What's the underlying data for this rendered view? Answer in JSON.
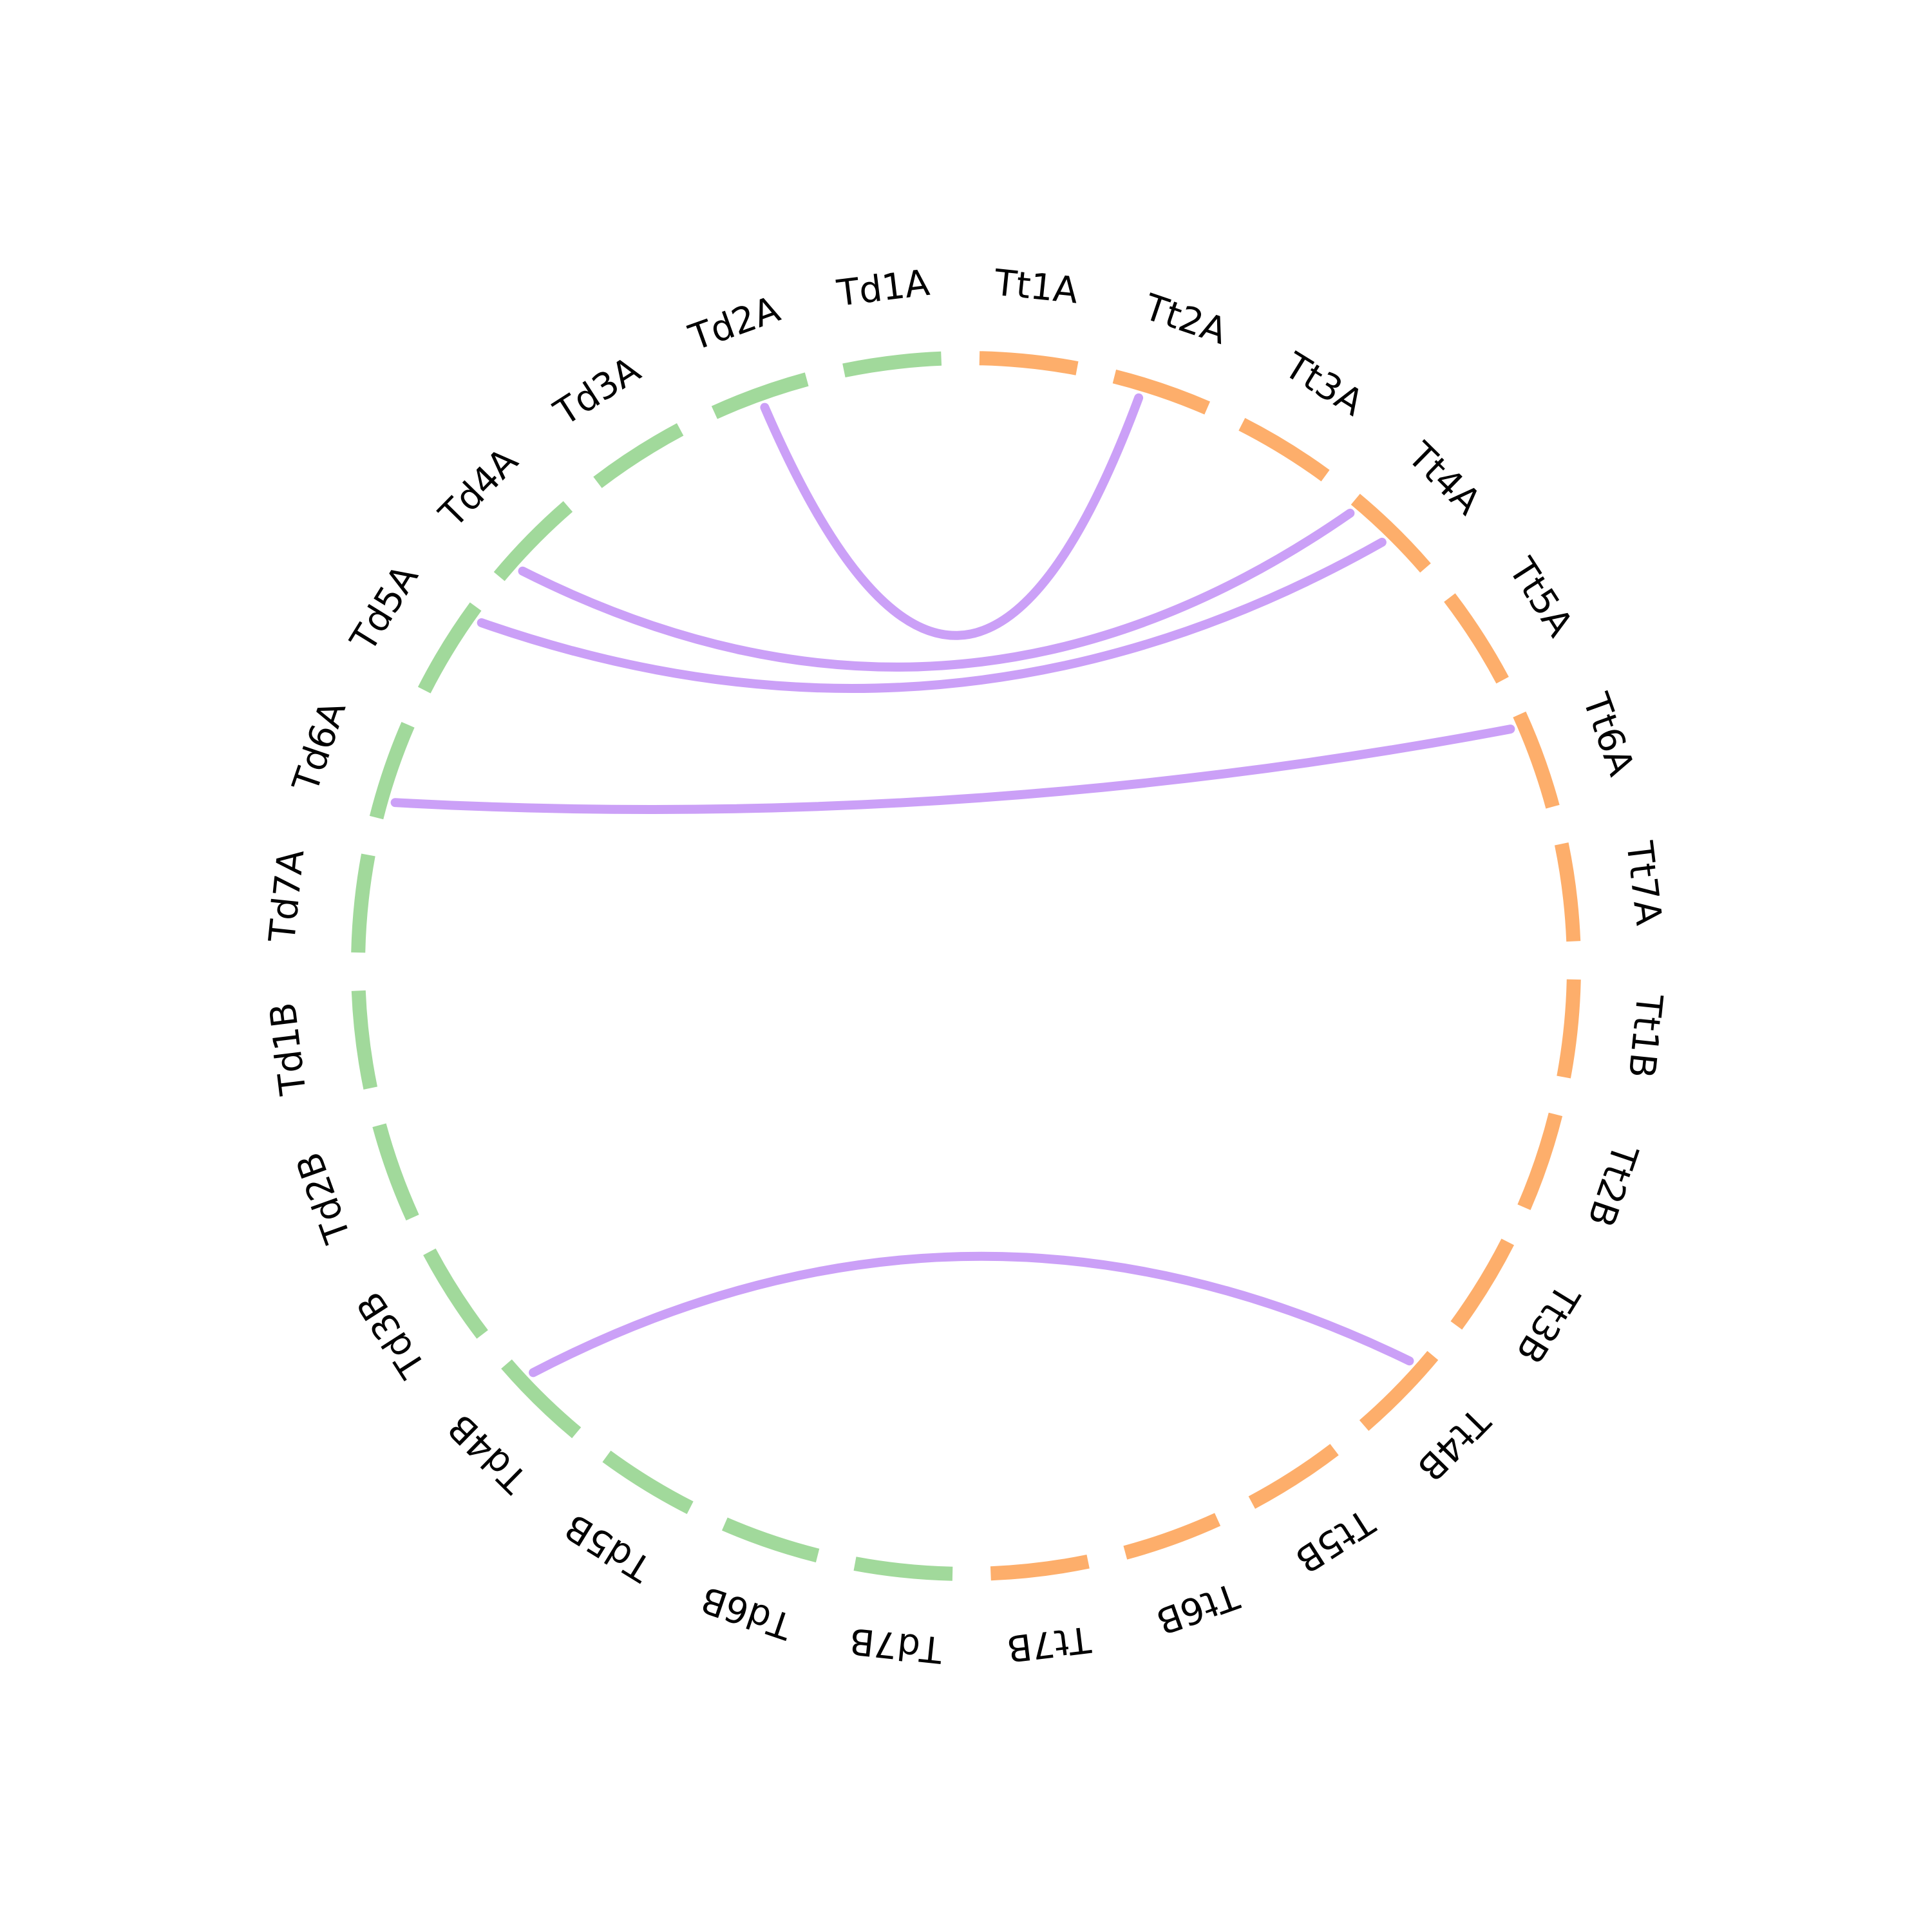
{
  "chromosomes": [
    {
      "id": "Tt1A",
      "label": "Tt1A",
      "genome": "Tt"
    },
    {
      "id": "Tt2A",
      "label": "Tt2A",
      "genome": "Tt"
    },
    {
      "id": "Tt3A",
      "label": "Tt3A",
      "genome": "Tt"
    },
    {
      "id": "Tt4A",
      "label": "Tt4A",
      "genome": "Tt"
    },
    {
      "id": "Tt5A",
      "label": "Tt5A",
      "genome": "Tt"
    },
    {
      "id": "Tt6A",
      "label": "Tt6A",
      "genome": "Tt"
    },
    {
      "id": "Tt7A",
      "label": "Tt7A",
      "genome": "Tt"
    },
    {
      "id": "Tt1B",
      "label": "Tt1B",
      "genome": "Tt"
    },
    {
      "id": "Tt2B",
      "label": "Tt2B",
      "genome": "Tt"
    },
    {
      "id": "Tt3B",
      "label": "Tt3B",
      "genome": "Tt"
    },
    {
      "id": "Tt4B",
      "label": "Tt4B",
      "genome": "Tt"
    },
    {
      "id": "Tt5B",
      "label": "Tt5B",
      "genome": "Tt"
    },
    {
      "id": "Tt6B",
      "label": "Tt6B",
      "genome": "Tt"
    },
    {
      "id": "Tt7B",
      "label": "Tt7B",
      "genome": "Tt"
    },
    {
      "id": "Td7B",
      "label": "Td7B",
      "genome": "Td"
    },
    {
      "id": "Td6B",
      "label": "Td6B",
      "genome": "Td"
    },
    {
      "id": "Td5B",
      "label": "Td5B",
      "genome": "Td"
    },
    {
      "id": "Td4B",
      "label": "Td4B",
      "genome": "Td"
    },
    {
      "id": "Td3B",
      "label": "Td3B",
      "genome": "Td"
    },
    {
      "id": "Td2B",
      "label": "Td2B",
      "genome": "Td"
    },
    {
      "id": "Td1B",
      "label": "Td1B",
      "genome": "Td"
    },
    {
      "id": "Td7A",
      "label": "Td7A",
      "genome": "Td"
    },
    {
      "id": "Td6A",
      "label": "Td6A",
      "genome": "Td"
    },
    {
      "id": "Td5A",
      "label": "Td5A",
      "genome": "Td"
    },
    {
      "id": "Td4A",
      "label": "Td4A",
      "genome": "Td"
    },
    {
      "id": "Td3A",
      "label": "Td3A",
      "genome": "Td"
    },
    {
      "id": "Td2A",
      "label": "Td2A",
      "genome": "Td"
    },
    {
      "id": "Td1A",
      "label": "Td1A",
      "genome": "Td"
    }
  ],
  "links": [
    {
      "from": "Td2A",
      "from_pos": 0.5,
      "to": "Tt2A",
      "to_pos": 0.3
    },
    {
      "from": "Td4A",
      "from_pos": 0.2,
      "to": "Tt4A",
      "to_pos": 0.05
    },
    {
      "from": "Td5A",
      "from_pos": 0.9,
      "to": "Tt4A",
      "to_pos": 0.5
    },
    {
      "from": "Td6A",
      "from_pos": 0.2,
      "to": "Tt6A",
      "to_pos": 0.1
    },
    {
      "from": "Td4B",
      "from_pos": 0.75,
      "to": "Tt4B",
      "to_pos": 0.2
    }
  ],
  "colors": {
    "Tt": "#fdae6b",
    "Td": "#a1d99b",
    "link": "#c89bf7",
    "text": "#000000"
  }
}
